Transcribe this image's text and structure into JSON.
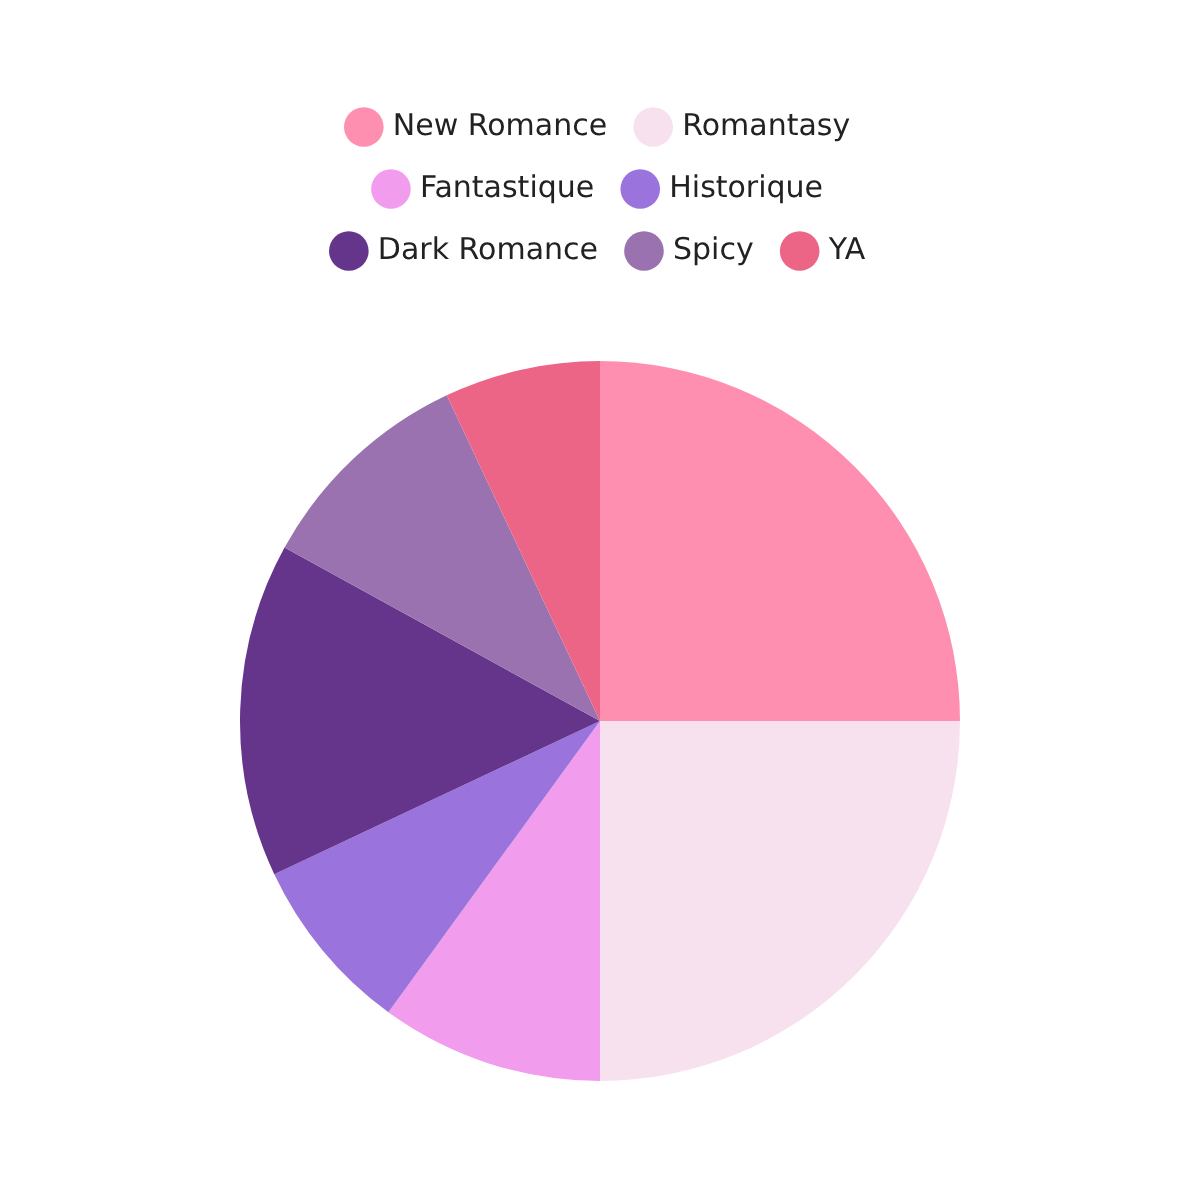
{
  "chart_data": {
    "type": "pie",
    "categories": [
      "New Romance",
      "Romantasy",
      "Fantastique",
      "Historique",
      "Dark Romance",
      "Spicy",
      "YA"
    ],
    "values": [
      25,
      25,
      10,
      8,
      15,
      10,
      7
    ],
    "colors": [
      "#ff8fb1",
      "#f7e1ee",
      "#f19ced",
      "#9a73dc",
      "#65358c",
      "#9a72af",
      "#ec6587"
    ],
    "legend": "top"
  }
}
